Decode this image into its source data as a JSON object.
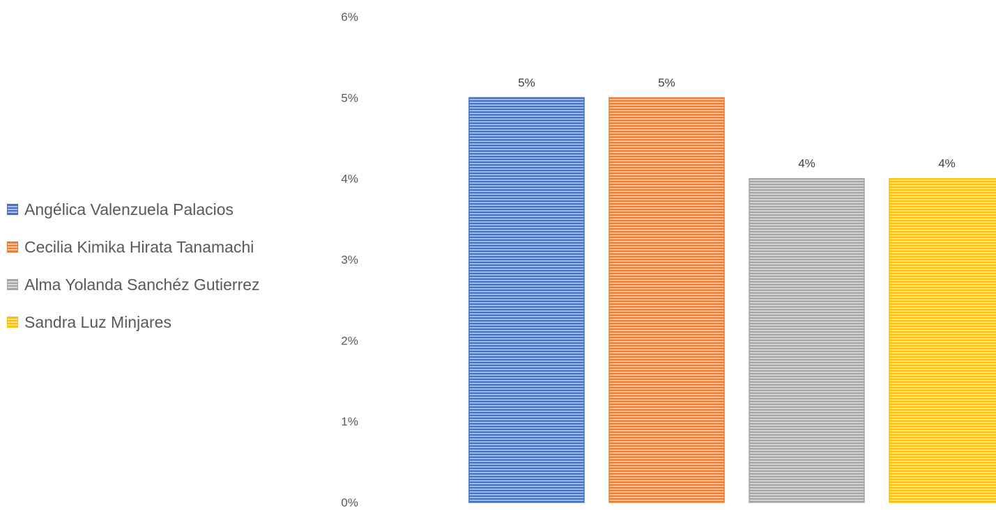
{
  "chart_data": {
    "type": "bar",
    "title": "",
    "xlabel": "",
    "ylabel": "",
    "ylim": [
      0,
      6
    ],
    "y_ticks": [
      0,
      1,
      2,
      3,
      4,
      5,
      6
    ],
    "y_tick_format": "{v}%",
    "grid": false,
    "legend_position": "left",
    "bar_pattern": "horizontal-stripes",
    "series": [
      {
        "name": "Angélica Valenzuela Palacios",
        "value": 5,
        "label": "5%",
        "color": "#4472C4"
      },
      {
        "name": "Cecilia Kimika Hirata Tanamachi",
        "value": 5,
        "label": "5%",
        "color": "#ED7D31"
      },
      {
        "name": "Alma Yolanda Sanchéz Gutierrez",
        "value": 4,
        "label": "4%",
        "color": "#A5A5A5"
      },
      {
        "name": "Sandra Luz Minjares",
        "value": 4,
        "label": "4%",
        "color": "#FFC000"
      }
    ]
  }
}
